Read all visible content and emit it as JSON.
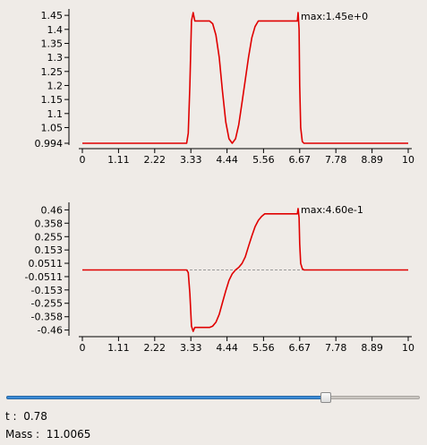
{
  "chart_data": [
    {
      "type": "line",
      "xticks": [
        "0",
        "1.11",
        "2.22",
        "3.33",
        "4.44",
        "5.56",
        "6.67",
        "7.78",
        "8.89",
        "10"
      ],
      "yticks": [
        "1.45",
        "1.4",
        "1.35",
        "1.3",
        "1.25",
        "1.2",
        "1.15",
        "1.1",
        "1.05",
        "0.994"
      ],
      "xlim": [
        0,
        10
      ],
      "ylim": [
        0.994,
        1.46
      ],
      "annotation": "max:1.45e+0",
      "zero_line": false,
      "line_color": "#e00000",
      "series": [
        {
          "x": [
            0,
            3.2,
            3.25,
            3.3,
            3.35,
            3.4,
            3.45,
            3.5,
            3.6,
            3.75,
            3.9,
            4.0,
            4.1,
            4.2,
            4.3,
            4.4,
            4.5,
            4.6,
            4.7,
            4.8,
            4.9,
            5.0,
            5.1,
            5.2,
            5.3,
            5.4,
            5.5,
            5.6,
            5.7,
            5.8,
            5.9,
            6.0,
            6.1,
            6.2,
            6.3,
            6.4,
            6.5,
            6.6,
            6.62,
            6.65,
            6.67,
            6.7,
            6.75,
            6.8,
            6.85,
            10
          ],
          "values": [
            0.994,
            0.994,
            1.03,
            1.2,
            1.43,
            1.46,
            1.43,
            1.43,
            1.43,
            1.43,
            1.43,
            1.42,
            1.38,
            1.3,
            1.18,
            1.07,
            1.01,
            0.994,
            1.01,
            1.06,
            1.14,
            1.22,
            1.3,
            1.37,
            1.41,
            1.43,
            1.43,
            1.43,
            1.43,
            1.43,
            1.43,
            1.43,
            1.43,
            1.43,
            1.43,
            1.43,
            1.43,
            1.43,
            1.46,
            1.4,
            1.2,
            1.05,
            1.0,
            0.994,
            0.994,
            0.994
          ]
        }
      ]
    },
    {
      "type": "line",
      "xticks": [
        "0",
        "1.11",
        "2.22",
        "3.33",
        "4.44",
        "5.56",
        "6.67",
        "7.78",
        "8.89",
        "10"
      ],
      "yticks": [
        "0.46",
        "0.358",
        "0.255",
        "0.153",
        "0.0511",
        "-0.0511",
        "-0.153",
        "-0.255",
        "-0.358",
        "-0.46"
      ],
      "xlim": [
        0,
        10
      ],
      "ylim": [
        -0.49,
        0.49
      ],
      "annotation": "max:4.60e-1",
      "zero_line": true,
      "line_color": "#e00000",
      "series": [
        {
          "x": [
            0,
            3.2,
            3.25,
            3.3,
            3.35,
            3.4,
            3.45,
            3.5,
            3.7,
            3.9,
            4.0,
            4.1,
            4.2,
            4.3,
            4.4,
            4.5,
            4.6,
            4.7,
            4.8,
            4.9,
            5.0,
            5.1,
            5.2,
            5.3,
            5.4,
            5.5,
            5.6,
            5.7,
            5.8,
            5.9,
            6.0,
            6.1,
            6.2,
            6.3,
            6.4,
            6.5,
            6.6,
            6.62,
            6.65,
            6.67,
            6.7,
            6.75,
            6.8,
            10
          ],
          "values": [
            0.0,
            0.0,
            -0.02,
            -0.18,
            -0.43,
            -0.47,
            -0.44,
            -0.44,
            -0.44,
            -0.44,
            -0.43,
            -0.4,
            -0.34,
            -0.25,
            -0.16,
            -0.08,
            -0.03,
            0.0,
            0.02,
            0.05,
            0.1,
            0.18,
            0.26,
            0.33,
            0.38,
            0.41,
            0.43,
            0.43,
            0.43,
            0.43,
            0.43,
            0.43,
            0.43,
            0.43,
            0.43,
            0.43,
            0.43,
            0.47,
            0.4,
            0.2,
            0.05,
            0.01,
            0.0,
            0.0
          ]
        }
      ]
    }
  ],
  "slider": {
    "value": 0.78
  },
  "readouts": {
    "t_label": "t :",
    "t_value": "0.78",
    "mass_label": "Mass :",
    "mass_value": "11.0065"
  }
}
